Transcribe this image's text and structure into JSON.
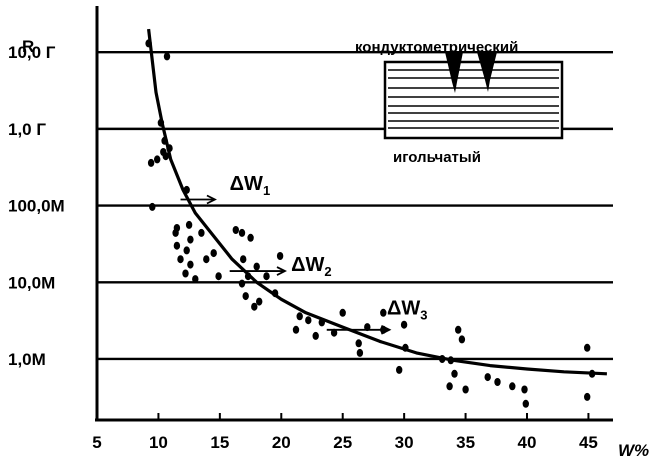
{
  "chart_data": {
    "type": "scatter",
    "title": "",
    "xlabel": "W%",
    "ylabel": "R",
    "x_ticks": [
      5,
      10,
      15,
      20,
      25,
      30,
      35,
      40,
      45
    ],
    "xlim": [
      5,
      47
    ],
    "y_scale": "log",
    "y_ticks": [
      {
        "value": 1000000,
        "label": "1,0M"
      },
      {
        "value": 10000000,
        "label": "10,0M"
      },
      {
        "value": 100000000,
        "label": "100,0M"
      },
      {
        "value": 1000000000,
        "label": "1,0 Г"
      },
      {
        "value": 10000000000,
        "label": "10,0 Г"
      }
    ],
    "ylim": [
      160000,
      40000000000
    ],
    "grid": {
      "horizontal": true,
      "vertical": false
    },
    "series": [
      {
        "kind": "points",
        "points": [
          [
            9.2,
            13000000000.0
          ],
          [
            10.7,
            8800000000.0
          ],
          [
            10.2,
            1200000000.0
          ],
          [
            10.5,
            700000000.0
          ],
          [
            10.9,
            560000000.0
          ],
          [
            10.4,
            500000000.0
          ],
          [
            9.9,
            400000000.0
          ],
          [
            9.4,
            360000000.0
          ],
          [
            9.5,
            96000000.0
          ],
          [
            10.6,
            440000000.0
          ],
          [
            12.3,
            160000000.0
          ],
          [
            12.5,
            56000000.0
          ],
          [
            11.5,
            51000000.0
          ],
          [
            11.4,
            44000000.0
          ],
          [
            12.6,
            36000000.0
          ],
          [
            12.3,
            26000000.0
          ],
          [
            11.8,
            20000000.0
          ],
          [
            11.5,
            30000000.0
          ],
          [
            13.5,
            44000000.0
          ],
          [
            13.9,
            20000000.0
          ],
          [
            14.5,
            24000000.0
          ],
          [
            12.6,
            17000000.0
          ],
          [
            12.2,
            13000000.0
          ],
          [
            13.0,
            11000000.0
          ],
          [
            14.9,
            12000000.0
          ],
          [
            16.3,
            48000000.0
          ],
          [
            16.8,
            44000000.0
          ],
          [
            17.5,
            38000000.0
          ],
          [
            16.9,
            20000000.0
          ],
          [
            18.0,
            16000000.0
          ],
          [
            18.8,
            12000000.0
          ],
          [
            17.3,
            12000000.0
          ],
          [
            16.8,
            9600000.0
          ],
          [
            17.1,
            6600000.0
          ],
          [
            18.2,
            5600000.0
          ],
          [
            17.8,
            4800000.0
          ],
          [
            19.5,
            7200000.0
          ],
          [
            19.9,
            22000000.0
          ],
          [
            21.5,
            3600000.0
          ],
          [
            22.2,
            3200000.0
          ],
          [
            23.3,
            3000000.0
          ],
          [
            21.2,
            2400000.0
          ],
          [
            22.8,
            2000000.0
          ],
          [
            24.3,
            2200000.0
          ],
          [
            25.0,
            4000000.0
          ],
          [
            26.3,
            1600000.0
          ],
          [
            27.0,
            2600000.0
          ],
          [
            28.3,
            4000000.0
          ],
          [
            28.3,
            2400000.0
          ],
          [
            26.4,
            1200000.0
          ],
          [
            30.0,
            2800000.0
          ],
          [
            30.1,
            1400000.0
          ],
          [
            29.6,
            720000.0
          ],
          [
            33.1,
            1000000.0
          ],
          [
            34.4,
            2400000.0
          ],
          [
            34.7,
            1800000.0
          ],
          [
            33.8,
            960000.0
          ],
          [
            34.1,
            640000.0
          ],
          [
            33.7,
            440000.0
          ],
          [
            35.0,
            400000.0
          ],
          [
            36.8,
            580000.0
          ],
          [
            37.6,
            500000.0
          ],
          [
            38.8,
            440000.0
          ],
          [
            39.8,
            400000.0
          ],
          [
            39.9,
            260000.0
          ],
          [
            44.9,
            1400000.0
          ],
          [
            45.3,
            640000.0
          ],
          [
            44.9,
            320000.0
          ]
        ]
      },
      {
        "kind": "curve",
        "points": [
          [
            9.2,
            20000000000.0
          ],
          [
            9.8,
            3000000000.0
          ],
          [
            10.3,
            1200000000.0
          ],
          [
            11.0,
            400000000.0
          ],
          [
            12.0,
            160000000.0
          ],
          [
            13.0,
            80000000.0
          ],
          [
            14.5,
            40000000.0
          ],
          [
            16.0,
            20000000.0
          ],
          [
            18.0,
            10000000.0
          ],
          [
            20.0,
            6000000.0
          ],
          [
            22.0,
            4000000.0
          ],
          [
            25.0,
            2600000.0
          ],
          [
            28.0,
            1700000.0
          ],
          [
            31.0,
            1200000.0
          ],
          [
            34.0,
            960000.0
          ],
          [
            37.0,
            820000.0
          ],
          [
            40.0,
            740000.0
          ],
          [
            43.0,
            680000.0
          ],
          [
            46.5,
            640000.0
          ]
        ]
      }
    ],
    "annotations": [
      {
        "label": "ΔW",
        "subscript": "1",
        "x": 15.8,
        "y": 160000000.0,
        "arrow_from": [
          11.8,
          120000000.0
        ],
        "arrow_to": [
          14.6,
          120000000.0
        ]
      },
      {
        "label": "ΔW",
        "subscript": "2",
        "x": 20.8,
        "y": 14000000.0,
        "arrow_from": [
          15.8,
          14000000.0
        ],
        "arrow_to": [
          20.3,
          14000000.0
        ]
      },
      {
        "label": "ΔW",
        "subscript": "3",
        "x": 28.6,
        "y": 3800000.0,
        "arrow_from": [
          23.7,
          2400000.0
        ],
        "arrow_to": [
          28.8,
          2400000.0
        ]
      }
    ],
    "legend": {
      "placement": "top-right",
      "top_label": "кондуктометрический",
      "bottom_label": "игольчатый"
    }
  }
}
